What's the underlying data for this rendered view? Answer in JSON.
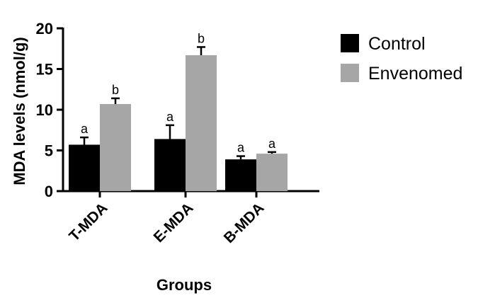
{
  "chart_data": {
    "type": "bar",
    "title": "",
    "xlabel": "Groups",
    "ylabel": "MDA levels (nmol/g)",
    "ylim": [
      0,
      20
    ],
    "yticks": [
      0,
      5,
      10,
      15,
      20
    ],
    "categories": [
      "T-MDA",
      "E-MDA",
      "B-MDA"
    ],
    "series": [
      {
        "name": "Control",
        "color": "#000000",
        "values": [
          5.7,
          6.4,
          3.9
        ],
        "errors": [
          0.9,
          1.7,
          0.4
        ],
        "significance": [
          "a",
          "a",
          "a"
        ]
      },
      {
        "name": "Envenomed",
        "color": "#a6a6a6",
        "values": [
          10.7,
          16.7,
          4.6
        ],
        "errors": [
          0.7,
          1.0,
          0.2
        ],
        "significance": [
          "b",
          "b",
          "a"
        ]
      }
    ],
    "legend_position": "top-right",
    "grid": false
  }
}
